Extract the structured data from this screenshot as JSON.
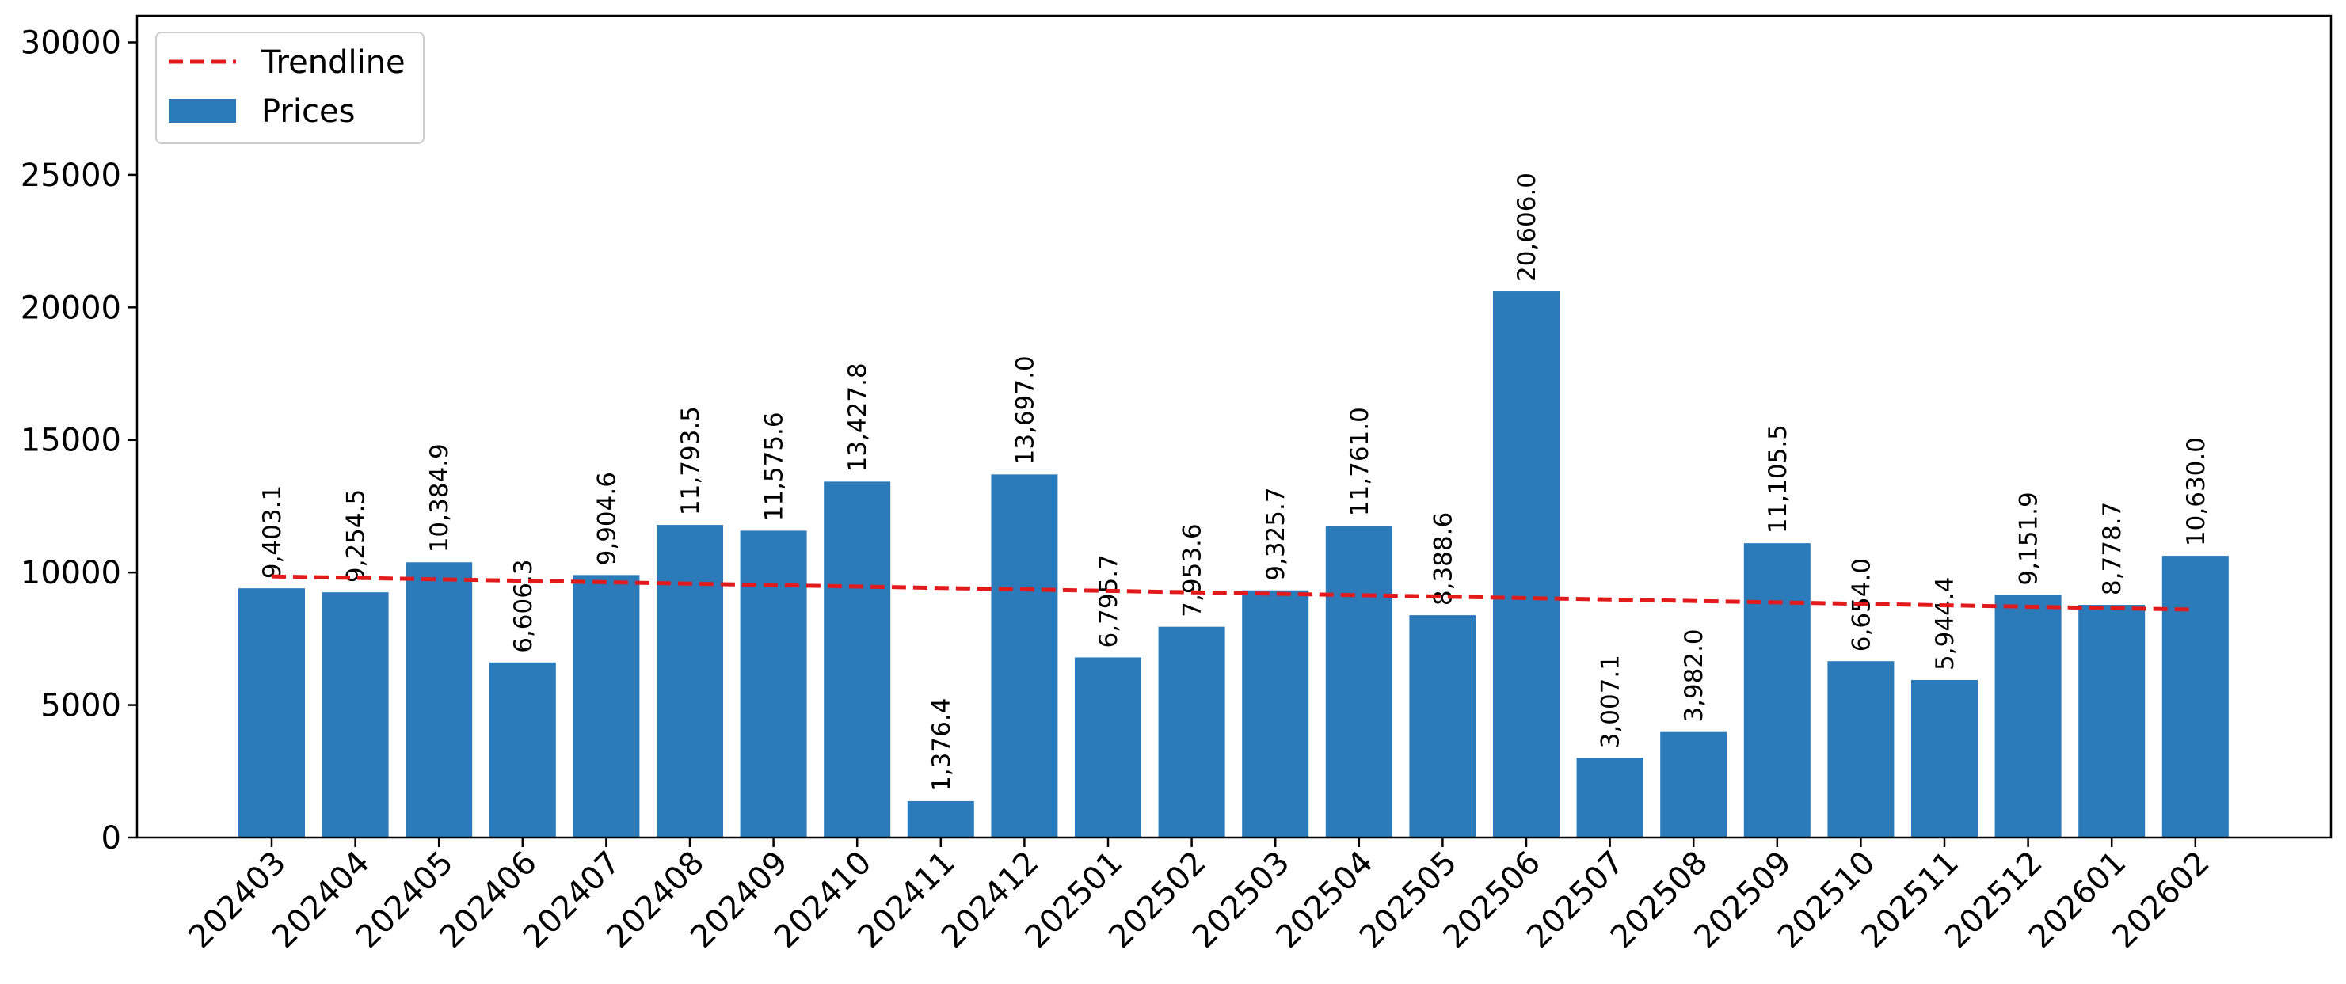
{
  "chart_data": {
    "type": "bar",
    "title": "",
    "xlabel": "",
    "ylabel": "",
    "categories": [
      "202403",
      "202404",
      "202405",
      "202406",
      "202407",
      "202408",
      "202409",
      "202410",
      "202411",
      "202412",
      "202501",
      "202502",
      "202503",
      "202504",
      "202505",
      "202506",
      "202507",
      "202508",
      "202509",
      "202510",
      "202511",
      "202512",
      "202601",
      "202602"
    ],
    "series": [
      {
        "name": "Prices",
        "type": "bar",
        "color": "#2b7bba",
        "values": [
          9403.1,
          9254.5,
          10384.9,
          6606.3,
          9904.6,
          11793.5,
          11575.6,
          13427.8,
          1376.4,
          13697.0,
          6795.7,
          7953.6,
          9325.7,
          11761.0,
          8388.6,
          20606.0,
          3007.1,
          3982.0,
          11105.5,
          6654.0,
          5944.4,
          9151.9,
          8778.7,
          10630.0
        ]
      },
      {
        "name": "Trendline",
        "type": "line",
        "style": "dashed",
        "color": "#e31a1c",
        "start": 9850,
        "end": 8600
      }
    ],
    "data_labels": [
      "9,403.1",
      "9,254.5",
      "10,384.9",
      "6,606.3",
      "9,904.6",
      "11,793.5",
      "11,575.6",
      "13,427.8",
      "1,376.4",
      "13,697.0",
      "6,795.7",
      "7,953.6",
      "9,325.7",
      "11,761.0",
      "8,388.6",
      "20,606.0",
      "3,007.1",
      "3,982.0",
      "11,105.5",
      "6,654.0",
      "5,944.4",
      "9,151.9",
      "8,778.7",
      "10,630.0"
    ],
    "ylim": [
      0,
      31000
    ],
    "yticks": [
      0,
      5000,
      10000,
      15000,
      20000,
      25000,
      30000
    ],
    "ytick_labels": [
      "0",
      "5000",
      "10000",
      "15000",
      "20000",
      "25000",
      "30000"
    ],
    "grid": false,
    "legend_position": "top-left",
    "legend": [
      {
        "label": "Trendline",
        "kind": "dashed-line",
        "color": "#e31a1c"
      },
      {
        "label": "Prices",
        "kind": "patch",
        "color": "#2b7bba"
      }
    ]
  }
}
